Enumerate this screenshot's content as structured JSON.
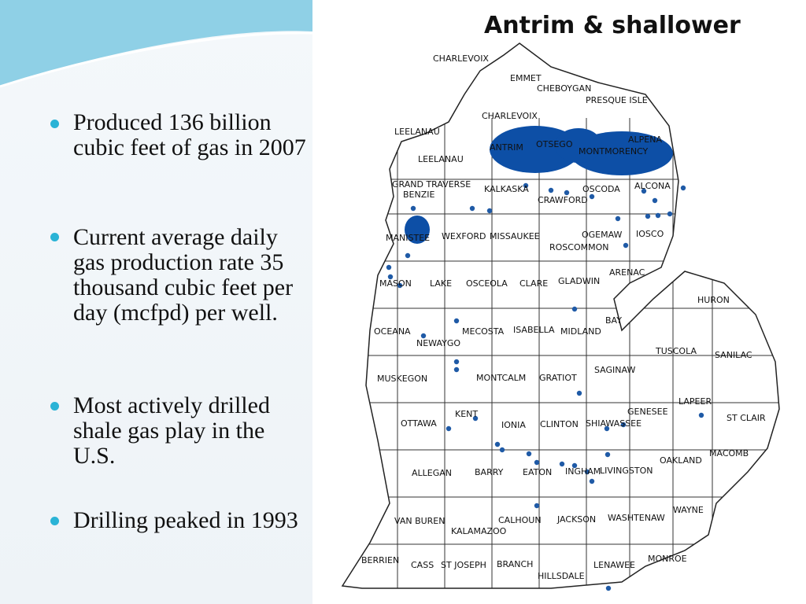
{
  "bullets": [
    "Produced 136 billion cubic feet of gas in 2007",
    "Current average daily gas production rate 35 thousand cubic feet per day (mcfpd) per well.",
    "Most actively drilled shale gas play in the U.S.",
    "Drilling peaked in 1993"
  ],
  "map": {
    "title": "Antrim & shallower",
    "labels": [
      "CHARLEVOIX",
      "EMMET",
      "CHEBOYGAN",
      "PRESQUE ISLE",
      "CHARLEVOIX",
      "LEELANAU",
      "LEELANAU",
      "ANTRIM",
      "OTSEGO",
      "MONTMORENCY",
      "ALPENA",
      "GRAND TRAVERSE",
      "BENZIE",
      "KALKASKA",
      "CRAWFORD",
      "OSCODA",
      "ALCONA",
      "MANISTEE",
      "WEXFORD",
      "MISSAUKEE",
      "OGEMAW",
      "ROSCOMMON",
      "IOSCO",
      "ARENAC",
      "MASON",
      "LAKE",
      "OSCEOLA",
      "CLARE",
      "GLADWIN",
      "HURON",
      "OCEANA",
      "NEWAYGO",
      "MECOSTA",
      "ISABELLA",
      "MIDLAND",
      "BAY",
      "TUSCOLA",
      "SANILAC",
      "SAGINAW",
      "MUSKEGON",
      "MONTCALM",
      "GRATIOT",
      "LAPEER",
      "KENT",
      "GENESEE",
      "ST CLAIR",
      "OTTAWA",
      "IONIA",
      "CLINTON",
      "SHIAWASSEE",
      "OAKLAND",
      "MACOMB",
      "ALLEGAN",
      "BARRY",
      "EATON",
      "INGHAM",
      "LIVINGSTON",
      "VAN BUREN",
      "CALHOUN",
      "JACKSON",
      "WASHTENAW",
      "WAYNE",
      "KALAMAZOO",
      "BERRIEN",
      "CASS",
      "ST JOSEPH",
      "BRANCH",
      "LENAWEE",
      "MONROE",
      "HILLSDALE"
    ]
  }
}
